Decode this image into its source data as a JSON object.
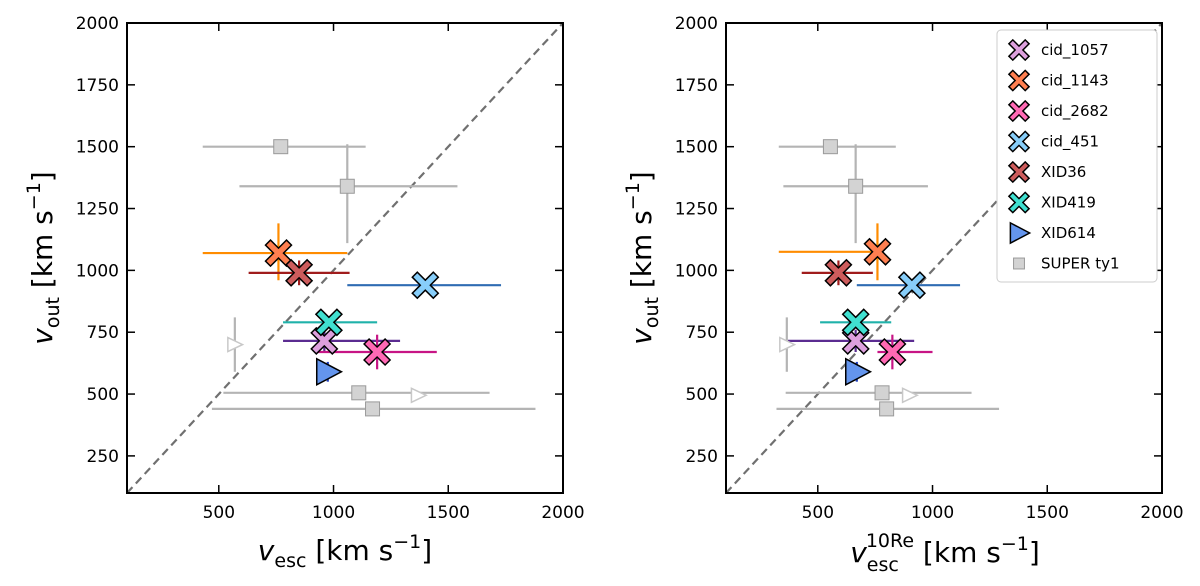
{
  "chart_data": [
    {
      "type": "scatter",
      "title": "",
      "xlabel": "v_esc [km s^-1]",
      "ylabel": "v_out [km s^-1]",
      "xlim": [
        100,
        2000
      ],
      "ylim": [
        100,
        2000
      ],
      "xticks": [
        "500",
        "1000",
        "1500",
        "2000"
      ],
      "yticks": [
        "250",
        "500",
        "750",
        "1000",
        "1250",
        "1500",
        "1750",
        "2000"
      ],
      "one_to_one_line": true,
      "series": [
        {
          "name": "cid_1057",
          "marker": "x",
          "color": "#dda0dd",
          "err_color": "#5b2c91",
          "points": [
            {
              "x": 960,
              "y": 715,
              "xerr": [
                780,
                1290
              ],
              "yerr": [
                670,
                760
              ]
            }
          ]
        },
        {
          "name": "cid_1143",
          "marker": "x",
          "color": "#ff7f50",
          "err_color": "#ff8c00",
          "points": [
            {
              "x": 760,
              "y": 1070,
              "xerr": [
                430,
                1060
              ],
              "yerr": [
                960,
                1190
              ]
            }
          ]
        },
        {
          "name": "cid_2682",
          "marker": "x",
          "color": "#ff69b4",
          "err_color": "#c71585",
          "points": [
            {
              "x": 1190,
              "y": 670,
              "xerr": [
                920,
                1450
              ],
              "yerr": [
                600,
                740
              ]
            }
          ]
        },
        {
          "name": "cid_451",
          "marker": "x",
          "color": "#87cefa",
          "err_color": "#2f6cb3",
          "points": [
            {
              "x": 1400,
              "y": 940,
              "xerr": [
                1060,
                1730
              ],
              "yerr": [
                940,
                940
              ]
            }
          ]
        },
        {
          "name": "XID36",
          "marker": "x",
          "color": "#cd5c5c",
          "err_color": "#a01c1c",
          "points": [
            {
              "x": 850,
              "y": 990,
              "xerr": [
                630,
                1070
              ],
              "yerr": [
                940,
                1040
              ]
            }
          ]
        },
        {
          "name": "XID419",
          "marker": "x",
          "color": "#40e0d0",
          "err_color": "#20b2aa",
          "points": [
            {
              "x": 980,
              "y": 790,
              "xerr": [
                780,
                1190
              ],
              "yerr": [
                790,
                790
              ]
            }
          ]
        },
        {
          "name": "XID614",
          "marker": "triangle",
          "color": "#6495ed",
          "err_color": "#1f3fbf",
          "points": [
            {
              "x": 975,
              "y": 590,
              "xerr": [
                975,
                975
              ],
              "yerr": [
                550,
                630
              ]
            }
          ]
        },
        {
          "name": "SUPER ty1",
          "marker": "square",
          "color": "#d3d3d3",
          "err_color": "#b4b4b4",
          "points": [
            {
              "x": 770,
              "y": 1500,
              "xerr": [
                430,
                1140
              ],
              "yerr": [
                1480,
                1520
              ]
            },
            {
              "x": 1060,
              "y": 1340,
              "xerr": [
                590,
                1540
              ],
              "yerr": [
                1110,
                1510
              ]
            },
            {
              "x": 1110,
              "y": 505,
              "xerr": [
                520,
                1680
              ],
              "yerr": [
                480,
                530
              ]
            },
            {
              "x": 1170,
              "y": 440,
              "xerr": [
                470,
                1880
              ],
              "yerr": [
                430,
                450
              ]
            }
          ]
        },
        {
          "name": "SUPER ty1 (limits)",
          "marker": "triangle-outline",
          "color": "#c8c8c8",
          "err_color": "#b4b4b4",
          "points": [
            {
              "x": 570,
              "y": 700,
              "xerr": [
                570,
                570
              ],
              "yerr": [
                590,
                810
              ]
            },
            {
              "x": 1370,
              "y": 495,
              "xerr": [
                1370,
                1370
              ],
              "yerr": [
                495,
                495
              ]
            }
          ]
        }
      ]
    },
    {
      "type": "scatter",
      "title": "",
      "xlabel": "v_esc^10Re [km s^-1]",
      "ylabel": "v_out [km s^-1]",
      "xlim": [
        100,
        2000
      ],
      "ylim": [
        100,
        2000
      ],
      "xticks": [
        "500",
        "1000",
        "1500",
        "2000"
      ],
      "yticks": [
        "250",
        "500",
        "750",
        "1000",
        "1250",
        "1500",
        "1750",
        "2000"
      ],
      "one_to_one_line": true,
      "series": [
        {
          "name": "cid_1057",
          "marker": "x",
          "color": "#dda0dd",
          "err_color": "#5b2c91",
          "points": [
            {
              "x": 665,
              "y": 715,
              "xerr": [
                370,
                920
              ],
              "yerr": [
                670,
                760
              ]
            }
          ]
        },
        {
          "name": "cid_1143",
          "marker": "x",
          "color": "#ff7f50",
          "err_color": "#ff8c00",
          "points": [
            {
              "x": 760,
              "y": 1075,
              "xerr": [
                330,
                760
              ],
              "yerr": [
                960,
                1190
              ]
            }
          ]
        },
        {
          "name": "cid_2682",
          "marker": "x",
          "color": "#ff69b4",
          "err_color": "#c71585",
          "points": [
            {
              "x": 825,
              "y": 670,
              "xerr": [
                760,
                1000
              ],
              "yerr": [
                600,
                740
              ]
            }
          ]
        },
        {
          "name": "cid_451",
          "marker": "x",
          "color": "#87cefa",
          "err_color": "#2f6cb3",
          "points": [
            {
              "x": 910,
              "y": 940,
              "xerr": [
                670,
                1120
              ],
              "yerr": [
                940,
                940
              ]
            }
          ]
        },
        {
          "name": "XID36",
          "marker": "x",
          "color": "#cd5c5c",
          "err_color": "#a01c1c",
          "points": [
            {
              "x": 590,
              "y": 990,
              "xerr": [
                430,
                740
              ],
              "yerr": [
                940,
                1040
              ]
            }
          ]
        },
        {
          "name": "XID419",
          "marker": "x",
          "color": "#40e0d0",
          "err_color": "#20b2aa",
          "points": [
            {
              "x": 665,
              "y": 790,
              "xerr": [
                510,
                820
              ],
              "yerr": [
                790,
                790
              ]
            }
          ]
        },
        {
          "name": "XID614",
          "marker": "triangle",
          "color": "#6495ed",
          "err_color": "#1f3fbf",
          "points": [
            {
              "x": 670,
              "y": 590,
              "xerr": [
                670,
                670
              ],
              "yerr": [
                550,
                630
              ]
            }
          ]
        },
        {
          "name": "SUPER ty1",
          "marker": "square",
          "color": "#d3d3d3",
          "err_color": "#b4b4b4",
          "points": [
            {
              "x": 555,
              "y": 1500,
              "xerr": [
                330,
                840
              ],
              "yerr": [
                1480,
                1520
              ]
            },
            {
              "x": 665,
              "y": 1340,
              "xerr": [
                350,
                980
              ],
              "yerr": [
                1110,
                1510
              ]
            },
            {
              "x": 780,
              "y": 505,
              "xerr": [
                360,
                1170
              ],
              "yerr": [
                480,
                530
              ]
            },
            {
              "x": 800,
              "y": 440,
              "xerr": [
                320,
                1290
              ],
              "yerr": [
                430,
                450
              ]
            }
          ]
        },
        {
          "name": "SUPER ty1 (limits)",
          "marker": "triangle-outline",
          "color": "#c8c8c8",
          "err_color": "#b4b4b4",
          "points": [
            {
              "x": 365,
              "y": 700,
              "xerr": [
                365,
                365
              ],
              "yerr": [
                590,
                810
              ]
            },
            {
              "x": 900,
              "y": 495,
              "xerr": [
                900,
                900
              ],
              "yerr": [
                495,
                495
              ]
            }
          ]
        }
      ],
      "legend": {
        "placement": "top-right",
        "entries": [
          {
            "label": "cid_1057",
            "marker": "x",
            "color": "#dda0dd"
          },
          {
            "label": "cid_1143",
            "marker": "x",
            "color": "#ff7f50"
          },
          {
            "label": "cid_2682",
            "marker": "x",
            "color": "#ff69b4"
          },
          {
            "label": "cid_451",
            "marker": "x",
            "color": "#87cefa"
          },
          {
            "label": "XID36",
            "marker": "x",
            "color": "#cd5c5c"
          },
          {
            "label": "XID419",
            "marker": "x",
            "color": "#40e0d0"
          },
          {
            "label": "XID614",
            "marker": "triangle",
            "color": "#6495ed"
          },
          {
            "label": "SUPER ty1",
            "marker": "square",
            "color": "#d3d3d3"
          }
        ]
      }
    }
  ],
  "axis_text": {
    "left_xlabel_main": "v",
    "left_xlabel_sub": "esc",
    "right_xlabel_main": "v",
    "right_xlabel_sub": "esc",
    "right_xlabel_sup": "10Re",
    "xlabel_unit": " [km s",
    "unit_exponent": "−1",
    "unit_close": "]",
    "ylabel_main": "v",
    "ylabel_sub": "out"
  }
}
